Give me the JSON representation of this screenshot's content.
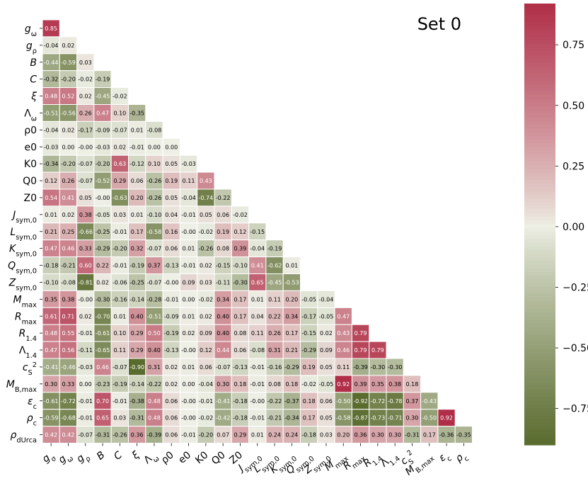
{
  "chart_data": {
    "type": "heatmap",
    "title": "Set 0",
    "labels": [
      "g_ω",
      "g_ρ",
      "B",
      "C",
      "ξ",
      "Λ_ω",
      "ρ0",
      "e0",
      "K0",
      "Q0",
      "Z0",
      "J_sym,0",
      "L_sym,0",
      "K_sym,0",
      "Q_sym,0",
      "Z_sym,0",
      "M_max",
      "R_max",
      "R_1.4",
      "Λ_1.4",
      "c_S^2",
      "M_B,max",
      "ε_c",
      "ρ_c",
      "ρ_dUrca"
    ],
    "x_labels": [
      "g_σ",
      "g_ω",
      "g_ρ",
      "B",
      "C",
      "ξ",
      "Λ_ω",
      "ρ0",
      "e0",
      "K0",
      "Q0",
      "Z0",
      "J_sym,0",
      "L_sym,0",
      "K_sym,0",
      "Q_sym,0",
      "Z_sym,0",
      "M_max",
      "R_max",
      "R_1.4",
      "Λ_1.4",
      "c_S^2",
      "M_B,max",
      "ε_c",
      "ρ_c"
    ],
    "values": [
      [
        0.85
      ],
      [
        -0.04,
        0.02
      ],
      [
        -0.44,
        -0.59,
        0.03
      ],
      [
        -0.32,
        -0.2,
        -0.02,
        -0.19
      ],
      [
        0.48,
        0.52,
        0.02,
        -0.45,
        -0.02
      ],
      [
        -0.51,
        -0.56,
        0.26,
        0.47,
        0.1,
        -0.35
      ],
      [
        -0.04,
        0.02,
        -0.17,
        -0.09,
        -0.07,
        0.01,
        -0.08
      ],
      [
        -0.03,
        0.0,
        -0.0,
        -0.03,
        0.02,
        -0.01,
        0.0,
        0.0
      ],
      [
        -0.34,
        -0.2,
        -0.07,
        -0.2,
        0.63,
        -0.12,
        0.1,
        0.05,
        -0.03
      ],
      [
        0.12,
        0.26,
        -0.07,
        -0.52,
        0.29,
        0.06,
        -0.26,
        0.19,
        0.11,
        0.43
      ],
      [
        0.54,
        0.41,
        0.05,
        -0.0,
        -0.63,
        0.2,
        -0.26,
        0.05,
        -0.04,
        -0.74,
        -0.22
      ],
      [
        0.01,
        0.02,
        0.38,
        -0.05,
        0.03,
        0.01,
        -0.1,
        0.04,
        -0.01,
        0.05,
        0.06,
        -0.02
      ],
      [
        0.21,
        0.25,
        -0.66,
        -0.25,
        -0.01,
        0.17,
        -0.58,
        0.16,
        -0.0,
        -0.02,
        0.19,
        0.12,
        -0.15
      ],
      [
        0.47,
        0.46,
        0.33,
        -0.29,
        -0.2,
        0.32,
        -0.07,
        0.06,
        0.01,
        -0.26,
        0.08,
        0.39,
        -0.04,
        -0.19
      ],
      [
        -0.18,
        -0.21,
        0.6,
        0.22,
        -0.01,
        -0.19,
        0.37,
        -0.13,
        -0.01,
        0.02,
        -0.15,
        -0.1,
        0.41,
        -0.62,
        0.01
      ],
      [
        -0.1,
        -0.08,
        -0.81,
        0.02,
        -0.06,
        -0.25,
        -0.07,
        -0.0,
        0.09,
        0.03,
        -0.11,
        -0.3,
        0.65,
        -0.45,
        -0.53
      ],
      [
        0.35,
        0.38,
        -0.0,
        -0.3,
        -0.16,
        -0.14,
        -0.28,
        -0.01,
        0.0,
        -0.02,
        0.34,
        0.17,
        0.01,
        0.11,
        0.2,
        -0.05,
        -0.04
      ],
      [
        0.61,
        0.71,
        0.02,
        -0.7,
        0.01,
        0.4,
        -0.51,
        -0.09,
        0.01,
        0.02,
        0.4,
        0.17,
        0.04,
        0.22,
        0.34,
        -0.17,
        -0.05,
        0.47
      ],
      [
        0.48,
        0.55,
        -0.01,
        -0.61,
        0.1,
        0.29,
        0.5,
        -0.19,
        0.02,
        0.09,
        0.4,
        0.08,
        0.11,
        0.26,
        0.17,
        -0.15,
        0.02,
        0.43,
        0.79
      ],
      [
        0.47,
        0.56,
        -0.11,
        -0.65,
        0.11,
        0.29,
        0.4,
        -0.13,
        -0.0,
        0.12,
        0.44,
        0.06,
        -0.08,
        0.31,
        0.21,
        -0.29,
        0.09,
        0.46,
        0.79,
        0.79
      ],
      [
        -0.41,
        -0.46,
        -0.03,
        0.46,
        -0.07,
        -0.9,
        0.31,
        0.02,
        0.01,
        0.06,
        -0.07,
        -0.13,
        -0.01,
        -0.16,
        -0.29,
        0.19,
        0.05,
        0.11,
        -0.39,
        -0.3,
        -0.3
      ],
      [
        0.3,
        0.33,
        0.0,
        -0.23,
        -0.19,
        -0.14,
        -0.22,
        0.02,
        0.0,
        -0.04,
        0.3,
        0.18,
        -0.01,
        0.08,
        0.18,
        -0.02,
        -0.05,
        0.92,
        0.39,
        0.35,
        0.38,
        0.18
      ],
      [
        -0.61,
        -0.72,
        -0.01,
        0.7,
        -0.01,
        -0.38,
        0.48,
        0.06,
        -0.0,
        -0.01,
        -0.41,
        -0.18,
        -0.0,
        -0.22,
        -0.37,
        0.18,
        0.06,
        -0.5,
        -0.92,
        -0.72,
        -0.78,
        0.37,
        -0.43
      ],
      [
        -0.59,
        -0.68,
        -0.01,
        0.65,
        0.03,
        -0.31,
        0.48,
        0.06,
        -0.0,
        -0.02,
        -0.42,
        -0.18,
        -0.01,
        -0.21,
        -0.34,
        0.17,
        0.05,
        -0.58,
        -0.87,
        -0.73,
        -0.71,
        0.3,
        -0.5,
        0.92
      ],
      [
        0.42,
        0.42,
        -0.07,
        -0.31,
        -0.26,
        0.36,
        -0.39,
        0.06,
        -0.01,
        -0.2,
        0.07,
        0.29,
        0.01,
        0.24,
        0.24,
        -0.18,
        0.03,
        0.2,
        0.36,
        0.3,
        0.3,
        -0.31,
        0.17,
        -0.36,
        -0.35
      ]
    ],
    "colorbar": {
      "min": -0.9,
      "max": 0.92,
      "ticks": [
        "0.75",
        "0.50",
        "0.25",
        "0.00",
        "−0.25",
        "−0.50",
        "−0.75"
      ]
    },
    "colors": {
      "negative": "#5a6b2e",
      "center": "#eef0e6",
      "positive": "#b02e48"
    },
    "grid": false
  }
}
